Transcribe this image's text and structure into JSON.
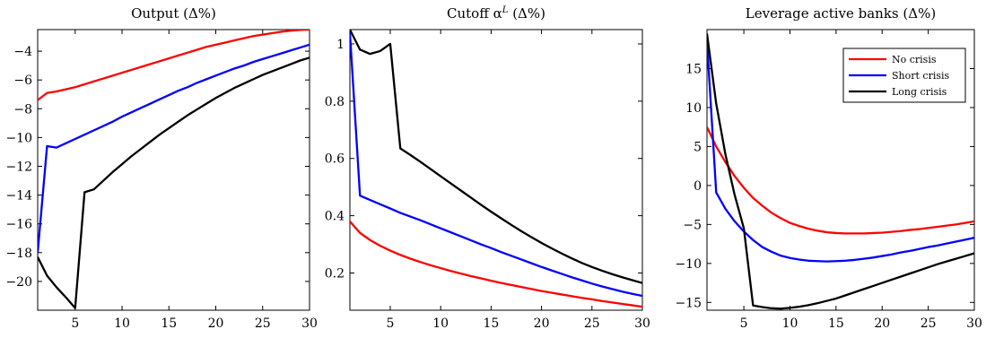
{
  "chart_data": [
    {
      "type": "line",
      "title": "Output (Δ%)",
      "xlim": [
        1,
        30
      ],
      "ylim": [
        -22,
        -2.5
      ],
      "xticks": [
        5,
        10,
        15,
        20,
        25,
        30
      ],
      "yticks": [
        -20,
        -18,
        -16,
        -14,
        -12,
        -10,
        -8,
        -6,
        -4
      ],
      "xtick_labels": [
        "5",
        "10",
        "15",
        "20",
        "25",
        "30"
      ],
      "ytick_labels": [
        "−20",
        "−18",
        "−16",
        "−14",
        "−12",
        "−10",
        "−8",
        "−6",
        "−4"
      ],
      "legend": null,
      "series": [
        {
          "name": "No crisis",
          "color": "#ff0000",
          "x": [
            1,
            2,
            3,
            4,
            5,
            6,
            7,
            8,
            9,
            10,
            11,
            12,
            13,
            14,
            15,
            16,
            17,
            18,
            19,
            20,
            21,
            22,
            23,
            24,
            25,
            26,
            27,
            28,
            29,
            30
          ],
          "y": [
            -7.4,
            -6.9,
            -6.8,
            -6.65,
            -6.5,
            -6.3,
            -6.1,
            -5.9,
            -5.7,
            -5.5,
            -5.3,
            -5.1,
            -4.9,
            -4.7,
            -4.5,
            -4.3,
            -4.1,
            -3.9,
            -3.7,
            -3.55,
            -3.4,
            -3.25,
            -3.1,
            -2.95,
            -2.85,
            -2.75,
            -2.65,
            -2.58,
            -2.52,
            -2.5
          ]
        },
        {
          "name": "Short crisis",
          "color": "#0000ff",
          "x": [
            1,
            2,
            3,
            4,
            5,
            6,
            7,
            8,
            9,
            10,
            11,
            12,
            13,
            14,
            15,
            16,
            17,
            18,
            19,
            20,
            21,
            22,
            23,
            24,
            25,
            26,
            27,
            28,
            29,
            30
          ],
          "y": [
            -18.0,
            -10.6,
            -10.7,
            -10.4,
            -10.1,
            -9.8,
            -9.5,
            -9.2,
            -8.9,
            -8.55,
            -8.25,
            -7.95,
            -7.65,
            -7.35,
            -7.05,
            -6.75,
            -6.5,
            -6.2,
            -5.95,
            -5.7,
            -5.45,
            -5.2,
            -5.0,
            -4.75,
            -4.55,
            -4.35,
            -4.15,
            -3.95,
            -3.75,
            -3.55
          ]
        },
        {
          "name": "Long crisis",
          "color": "#000000",
          "x": [
            1,
            2,
            3,
            4,
            5,
            6,
            7,
            8,
            9,
            10,
            11,
            12,
            13,
            14,
            15,
            16,
            17,
            18,
            19,
            20,
            21,
            22,
            23,
            24,
            25,
            26,
            27,
            28,
            29,
            30
          ],
          "y": [
            -18.3,
            -19.6,
            -20.4,
            -21.1,
            -21.85,
            -13.8,
            -13.6,
            -13.0,
            -12.4,
            -11.85,
            -11.3,
            -10.8,
            -10.3,
            -9.8,
            -9.35,
            -8.9,
            -8.45,
            -8.05,
            -7.65,
            -7.25,
            -6.9,
            -6.55,
            -6.25,
            -5.95,
            -5.65,
            -5.4,
            -5.15,
            -4.9,
            -4.65,
            -4.45
          ]
        }
      ]
    },
    {
      "type": "line",
      "title": "Cutoff α^L (Δ%)",
      "title_main": "Cutoff α",
      "title_sup": "L",
      "title_tail": " (Δ%)",
      "xlim": [
        1,
        30
      ],
      "ylim": [
        0.07,
        1.05
      ],
      "xticks": [
        5,
        10,
        15,
        20,
        25,
        30
      ],
      "yticks": [
        0.2,
        0.4,
        0.6,
        0.8,
        1
      ],
      "xtick_labels": [
        "5",
        "10",
        "15",
        "20",
        "25",
        "30"
      ],
      "ytick_labels": [
        "0.2",
        "0.4",
        "0.6",
        "0.8",
        "1"
      ],
      "legend": null,
      "series": [
        {
          "name": "No crisis",
          "color": "#ff0000",
          "x": [
            1,
            2,
            3,
            4,
            5,
            6,
            7,
            8,
            9,
            10,
            11,
            12,
            13,
            14,
            15,
            16,
            17,
            18,
            19,
            20,
            21,
            22,
            23,
            24,
            25,
            26,
            27,
            28,
            29,
            30
          ],
          "y": [
            0.38,
            0.34,
            0.315,
            0.295,
            0.278,
            0.263,
            0.25,
            0.238,
            0.227,
            0.217,
            0.207,
            0.198,
            0.189,
            0.181,
            0.173,
            0.165,
            0.158,
            0.151,
            0.144,
            0.137,
            0.131,
            0.125,
            0.119,
            0.113,
            0.108,
            0.102,
            0.097,
            0.092,
            0.087,
            0.082
          ]
        },
        {
          "name": "Short crisis",
          "color": "#0000ff",
          "x": [
            1,
            2,
            3,
            4,
            5,
            6,
            7,
            8,
            9,
            10,
            11,
            12,
            13,
            14,
            15,
            16,
            17,
            18,
            19,
            20,
            21,
            22,
            23,
            24,
            25,
            26,
            27,
            28,
            29,
            30
          ],
          "y": [
            1.04,
            0.47,
            0.455,
            0.44,
            0.425,
            0.41,
            0.397,
            0.384,
            0.37,
            0.356,
            0.342,
            0.328,
            0.314,
            0.3,
            0.287,
            0.273,
            0.26,
            0.247,
            0.234,
            0.221,
            0.209,
            0.197,
            0.185,
            0.174,
            0.163,
            0.153,
            0.144,
            0.135,
            0.127,
            0.12
          ]
        },
        {
          "name": "Long crisis",
          "color": "#000000",
          "x": [
            1,
            2,
            3,
            4,
            5,
            6,
            7,
            8,
            9,
            10,
            11,
            12,
            13,
            14,
            15,
            16,
            17,
            18,
            19,
            20,
            21,
            22,
            23,
            24,
            25,
            26,
            27,
            28,
            29,
            30
          ],
          "y": [
            1.05,
            0.98,
            0.965,
            0.975,
            1.0,
            0.635,
            0.612,
            0.588,
            0.563,
            0.538,
            0.513,
            0.488,
            0.463,
            0.438,
            0.414,
            0.391,
            0.368,
            0.346,
            0.325,
            0.305,
            0.286,
            0.268,
            0.251,
            0.235,
            0.221,
            0.208,
            0.196,
            0.185,
            0.175,
            0.165
          ]
        }
      ]
    },
    {
      "type": "line",
      "title": "Leverage active banks (Δ%)",
      "xlim": [
        1,
        30
      ],
      "ylim": [
        -16,
        20
      ],
      "xticks": [
        5,
        10,
        15,
        20,
        25,
        30
      ],
      "yticks": [
        -15,
        -10,
        -5,
        0,
        5,
        10,
        15
      ],
      "xtick_labels": [
        "5",
        "10",
        "15",
        "20",
        "25",
        "30"
      ],
      "ytick_labels": [
        "−15",
        "−10",
        "−5",
        "0",
        "5",
        "10",
        "15"
      ],
      "legend": {
        "position": "top-right",
        "entries": [
          "No crisis",
          "Short crisis",
          "Long crisis"
        ]
      },
      "series": [
        {
          "name": "No crisis",
          "color": "#ff0000",
          "x": [
            1,
            2,
            3,
            4,
            5,
            6,
            7,
            8,
            9,
            10,
            11,
            12,
            13,
            14,
            15,
            16,
            17,
            18,
            19,
            20,
            21,
            22,
            23,
            24,
            25,
            26,
            27,
            28,
            29,
            30
          ],
          "y": [
            7.5,
            5.0,
            3.0,
            1.2,
            -0.3,
            -1.6,
            -2.6,
            -3.5,
            -4.2,
            -4.8,
            -5.2,
            -5.55,
            -5.8,
            -6.0,
            -6.1,
            -6.15,
            -6.15,
            -6.15,
            -6.1,
            -6.05,
            -5.95,
            -5.85,
            -5.7,
            -5.6,
            -5.45,
            -5.3,
            -5.15,
            -5.0,
            -4.8,
            -4.6
          ]
        },
        {
          "name": "Short crisis",
          "color": "#0000ff",
          "x": [
            1,
            2,
            3,
            4,
            5,
            6,
            7,
            8,
            9,
            10,
            11,
            12,
            13,
            14,
            15,
            16,
            17,
            18,
            19,
            20,
            21,
            22,
            23,
            24,
            25,
            26,
            27,
            28,
            29,
            30
          ],
          "y": [
            18.5,
            -0.9,
            -3.0,
            -4.6,
            -5.9,
            -7.0,
            -7.9,
            -8.5,
            -9.0,
            -9.3,
            -9.5,
            -9.65,
            -9.7,
            -9.75,
            -9.7,
            -9.65,
            -9.55,
            -9.4,
            -9.25,
            -9.05,
            -8.85,
            -8.6,
            -8.4,
            -8.15,
            -7.9,
            -7.7,
            -7.45,
            -7.2,
            -6.95,
            -6.7
          ]
        },
        {
          "name": "Long crisis",
          "color": "#000000",
          "x": [
            1,
            2,
            3,
            4,
            5,
            6,
            7,
            8,
            9,
            10,
            11,
            12,
            13,
            14,
            15,
            16,
            17,
            18,
            19,
            20,
            21,
            22,
            23,
            24,
            25,
            26,
            27,
            28,
            29,
            30
          ],
          "y": [
            19.5,
            10.5,
            4.0,
            -1.2,
            -5.5,
            -15.4,
            -15.6,
            -15.75,
            -15.8,
            -15.7,
            -15.55,
            -15.35,
            -15.1,
            -14.8,
            -14.5,
            -14.1,
            -13.7,
            -13.3,
            -12.9,
            -12.5,
            -12.1,
            -11.7,
            -11.3,
            -10.9,
            -10.5,
            -10.1,
            -9.75,
            -9.4,
            -9.05,
            -8.7
          ]
        }
      ]
    }
  ]
}
